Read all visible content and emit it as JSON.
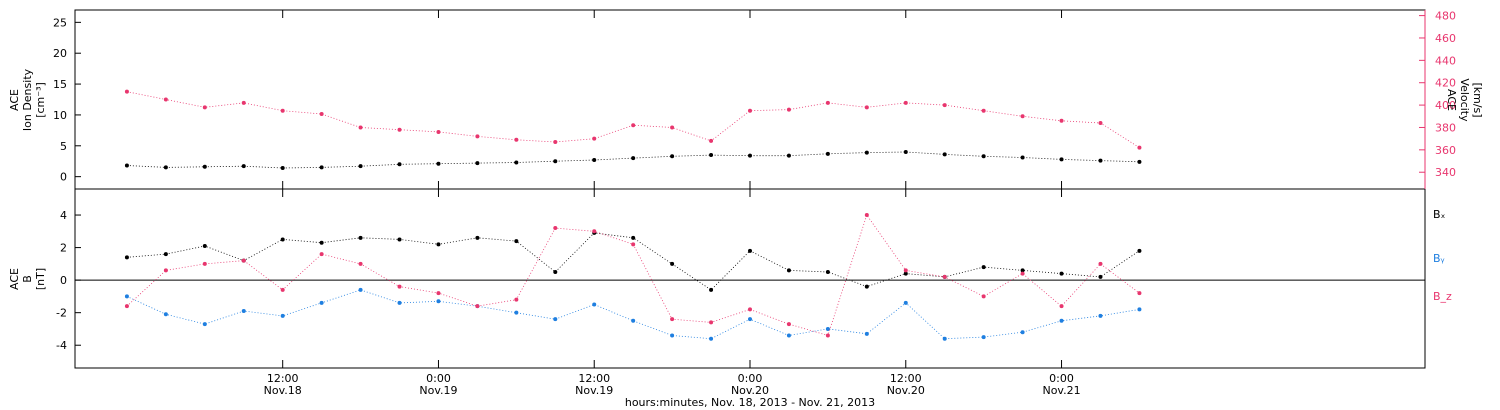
{
  "colors": {
    "axis": "#000000",
    "accent": "#e8366e",
    "blue": "#1f7fe0",
    "black": "#000000"
  },
  "chart_data": [
    {
      "type": "scatter",
      "panel": "top",
      "ylabel_lines": [
        "ACE",
        "Ion Density",
        "[cm⁻³]"
      ],
      "y2label_lines": [
        "ACE",
        "Velocity",
        "[km/s]"
      ],
      "ylim": [
        -2,
        27
      ],
      "y_ticks": [
        0,
        5,
        10,
        15,
        20,
        25
      ],
      "y_tick_labels": [
        "0",
        "5",
        "10",
        "15",
        "20",
        "25"
      ],
      "y2lim": [
        325,
        485
      ],
      "y2_ticks": [
        340,
        360,
        380,
        400,
        420,
        440,
        460,
        480
      ],
      "y2_tick_labels": [
        "340",
        "360",
        "380",
        "400",
        "420",
        "440",
        "460",
        "480"
      ],
      "series": [
        {
          "color": "#000000",
          "axis": "left",
          "x": [
            0,
            3,
            6,
            9,
            12,
            15,
            18,
            21,
            24,
            27,
            30,
            33,
            36,
            39,
            42,
            45,
            48,
            51,
            54,
            57,
            60,
            63,
            66,
            69,
            72,
            75,
            78
          ],
          "y": [
            1.8,
            1.5,
            1.6,
            1.7,
            1.4,
            1.5,
            1.7,
            2.0,
            2.1,
            2.2,
            2.3,
            2.5,
            2.7,
            3.0,
            3.3,
            3.5,
            3.4,
            3.4,
            3.7,
            3.9,
            4.0,
            3.6,
            3.3,
            3.1,
            2.8,
            2.6,
            2.4
          ]
        },
        {
          "color": "#e8366e",
          "axis": "right",
          "x": [
            0,
            3,
            6,
            9,
            12,
            15,
            18,
            21,
            24,
            27,
            30,
            33,
            36,
            39,
            42,
            45,
            48,
            51,
            54,
            57,
            60,
            63,
            66,
            69,
            72,
            75,
            78
          ],
          "y": [
            412,
            405,
            398,
            402,
            395,
            392,
            380,
            378,
            376,
            372,
            369,
            367,
            370,
            382,
            380,
            368,
            395,
            396,
            402,
            398,
            402,
            400,
            395,
            390,
            386,
            384,
            362
          ]
        }
      ]
    },
    {
      "type": "scatter",
      "panel": "bottom",
      "ylabel_lines": [
        "ACE",
        "B",
        "[nT]"
      ],
      "ylim": [
        -5.4,
        5.6
      ],
      "y_ticks": [
        -4,
        -2,
        0,
        2,
        4
      ],
      "y_tick_labels": [
        "-4",
        "-2",
        "0",
        "2",
        "4"
      ],
      "legend_position": "right",
      "series": [
        {
          "name": "Bₓ",
          "color": "#000000",
          "x": [
            0,
            3,
            6,
            9,
            12,
            15,
            18,
            21,
            24,
            27,
            30,
            33,
            36,
            39,
            42,
            45,
            48,
            51,
            54,
            57,
            60,
            63,
            66,
            69,
            72,
            75,
            78
          ],
          "y": [
            1.4,
            1.6,
            2.1,
            1.2,
            2.5,
            2.3,
            2.6,
            2.5,
            2.2,
            2.6,
            2.4,
            0.5,
            2.9,
            2.6,
            1.0,
            -0.6,
            1.8,
            0.6,
            0.5,
            -0.4,
            0.4,
            0.2,
            0.8,
            0.6,
            0.4,
            0.2,
            1.8
          ]
        },
        {
          "name": "Bᵧ",
          "color": "#1f7fe0",
          "x": [
            0,
            3,
            6,
            9,
            12,
            15,
            18,
            21,
            24,
            27,
            30,
            33,
            36,
            39,
            42,
            45,
            48,
            51,
            54,
            57,
            60,
            63,
            66,
            69,
            72,
            75,
            78
          ],
          "y": [
            -1.0,
            -2.1,
            -2.7,
            -1.9,
            -2.2,
            -1.4,
            -0.6,
            -1.4,
            -1.3,
            -1.6,
            -2.0,
            -2.4,
            -1.5,
            -2.5,
            -3.4,
            -3.6,
            -2.4,
            -3.4,
            -3.0,
            -3.3,
            -1.4,
            -3.6,
            -3.5,
            -3.2,
            -2.5,
            -2.2,
            -1.8
          ]
        },
        {
          "name": "B_z",
          "color": "#e8366e",
          "x": [
            0,
            3,
            6,
            9,
            12,
            15,
            18,
            21,
            24,
            27,
            30,
            33,
            36,
            39,
            42,
            45,
            48,
            51,
            54,
            57,
            60,
            63,
            66,
            69,
            72,
            75,
            78
          ],
          "y": [
            -1.6,
            0.6,
            1.0,
            1.2,
            -0.6,
            1.6,
            1.0,
            -0.4,
            -0.8,
            -1.6,
            -1.2,
            3.2,
            3.0,
            2.2,
            -2.4,
            -2.6,
            -1.8,
            -2.7,
            -3.4,
            4.0,
            0.6,
            0.2,
            -1.0,
            0.4,
            -1.6,
            1.0,
            -0.8
          ]
        }
      ]
    }
  ],
  "x_axis": {
    "xlim": [
      -4,
      100
    ],
    "major_ticks": [
      12,
      24,
      36,
      48,
      60,
      72
    ],
    "tick_times": [
      "12:00",
      "0:00",
      "12:00",
      "0:00",
      "12:00",
      "0:00"
    ],
    "tick_dates": [
      "Nov.18",
      "Nov.19",
      "Nov.19",
      "Nov.20",
      "Nov.20",
      "Nov.21"
    ],
    "xlabel": "hours:minutes, Nov. 18, 2013 - Nov. 21, 2013"
  },
  "legend": [
    "Bₓ",
    "Bᵧ",
    "B_z"
  ]
}
